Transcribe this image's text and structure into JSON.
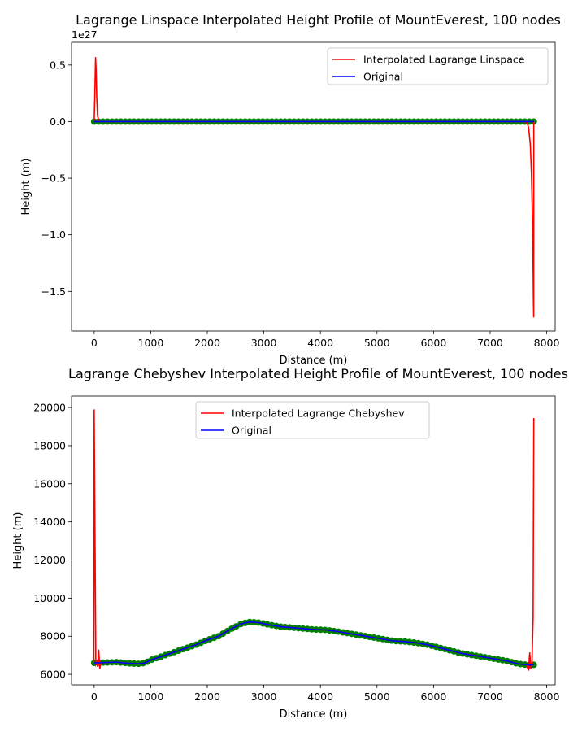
{
  "chart_data": [
    {
      "type": "line",
      "title": "Lagrange Linspace Interpolated Height Profile of MountEverest, 100 nodes",
      "xlabel": "Distance (m)",
      "ylabel": "Height (m)",
      "y_offset_label": "1e27",
      "xlim": [
        -400,
        8150
      ],
      "ylim": [
        -1.85,
        0.7
      ],
      "x_ticks": [
        0,
        1000,
        2000,
        3000,
        4000,
        5000,
        6000,
        7000,
        8000
      ],
      "x_tick_labels": [
        "0",
        "1000",
        "2000",
        "3000",
        "4000",
        "5000",
        "6000",
        "7000",
        "8000"
      ],
      "y_ticks": [
        0.5,
        0.0,
        -0.5,
        -1.0,
        -1.5
      ],
      "y_tick_labels": [
        "0.5",
        "0.0",
        "−0.5",
        "−1.0",
        "−1.5"
      ],
      "legend_position": "top-right",
      "series": [
        {
          "name": "Interpolated Lagrange Linspace",
          "color": "#ff0000",
          "x": [
            0,
            10,
            25,
            35,
            45,
            60,
            80,
            100,
            7600,
            7650,
            7680,
            7710,
            7730,
            7750,
            7760,
            7765,
            7770,
            7772
          ],
          "y": [
            0,
            0.2,
            0.57,
            0.45,
            0.22,
            0.05,
            0.01,
            0,
            0,
            -0.01,
            -0.05,
            -0.2,
            -0.45,
            -0.9,
            -1.3,
            -1.55,
            -1.73,
            0
          ]
        },
        {
          "name": "Original",
          "color": "#0000ff",
          "x": [
            0,
            7772
          ],
          "y": [
            0,
            0
          ]
        }
      ],
      "nodes": {
        "color": "#008000",
        "count": 100,
        "x_range": [
          0,
          7772
        ],
        "y_value": 0
      }
    },
    {
      "type": "line",
      "title": "Lagrange Chebyshev Interpolated Height Profile of MountEverest, 100 nodes",
      "xlabel": "Distance (m)",
      "ylabel": "Height (m)",
      "xlim": [
        -400,
        8150
      ],
      "ylim": [
        5450,
        20600
      ],
      "x_ticks": [
        0,
        1000,
        2000,
        3000,
        4000,
        5000,
        6000,
        7000,
        8000
      ],
      "x_tick_labels": [
        "0",
        "1000",
        "2000",
        "3000",
        "4000",
        "5000",
        "6000",
        "7000",
        "8000"
      ],
      "y_ticks": [
        20000,
        18000,
        16000,
        14000,
        12000,
        10000,
        8000,
        6000
      ],
      "y_tick_labels": [
        "20000",
        "18000",
        "16000",
        "14000",
        "12000",
        "10000",
        "8000",
        "6000"
      ],
      "legend_position": "upper-center",
      "profile": {
        "x": [
          0,
          200,
          400,
          600,
          800,
          900,
          1000,
          1200,
          1400,
          1600,
          1800,
          2000,
          2200,
          2400,
          2600,
          2750,
          2900,
          3100,
          3300,
          3500,
          3700,
          3900,
          4100,
          4300,
          4500,
          4700,
          4900,
          5100,
          5300,
          5500,
          5700,
          5900,
          6100,
          6300,
          6500,
          6700,
          6900,
          7100,
          7300,
          7500,
          7700,
          7772
        ],
        "y": [
          6600,
          6620,
          6640,
          6580,
          6550,
          6600,
          6750,
          6950,
          7150,
          7350,
          7550,
          7800,
          8000,
          8350,
          8650,
          8750,
          8720,
          8600,
          8500,
          8450,
          8400,
          8350,
          8330,
          8250,
          8150,
          8050,
          7950,
          7850,
          7750,
          7720,
          7650,
          7550,
          7400,
          7250,
          7100,
          7000,
          6900,
          6800,
          6700,
          6550,
          6480,
          6500
        ]
      },
      "series": [
        {
          "name": "Interpolated Lagrange Chebyshev",
          "color": "#ff0000",
          "spikes": {
            "left": {
              "x": [
                -5,
                0,
                30,
                50,
                60,
                80,
                100,
                120
              ],
              "y": [
                6600,
                19900,
                6500,
                6600,
                6400,
                7300,
                6300,
                6600
              ]
            },
            "right": {
              "x": [
                7640,
                7680,
                7700,
                7720,
                7740,
                7760,
                7772
              ],
              "y": [
                6500,
                6200,
                7150,
                6300,
                6600,
                9000,
                19450
              ]
            }
          }
        },
        {
          "name": "Original",
          "color": "#0000ff"
        }
      ],
      "nodes": {
        "color": "#008000",
        "count": 100
      }
    }
  ]
}
